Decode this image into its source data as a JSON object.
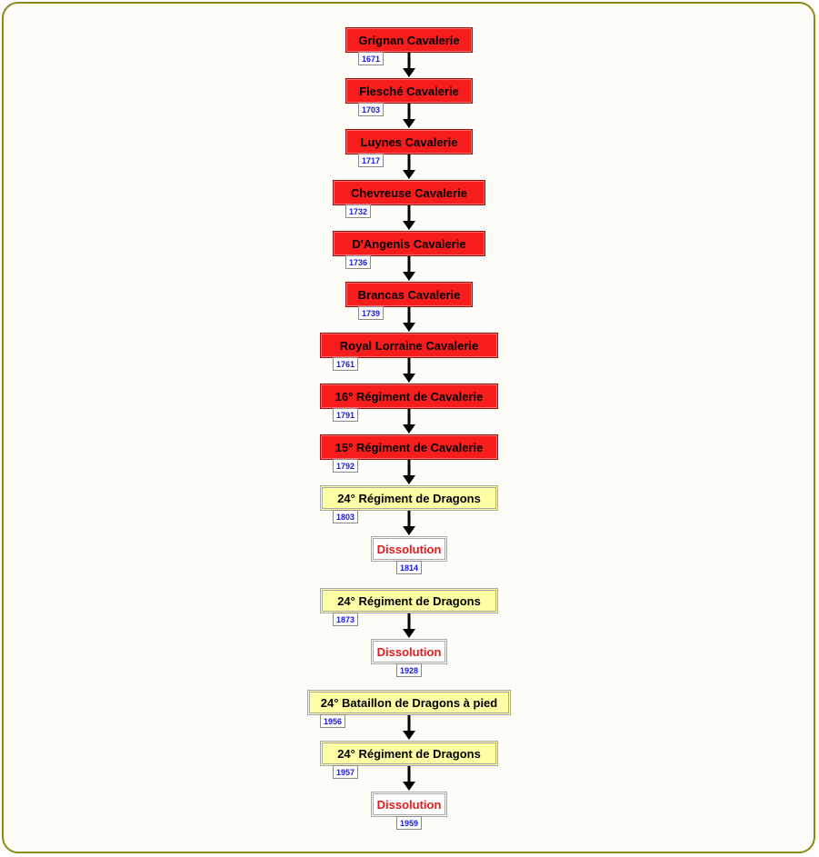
{
  "nodes": [
    {
      "label": "Grignan Cavalerie",
      "year": "1671",
      "style": "red"
    },
    {
      "label": "Flesché Cavalerie",
      "year": "1703",
      "style": "red"
    },
    {
      "label": "Luynes Cavalerie",
      "year": "1717",
      "style": "red"
    },
    {
      "label": "Chevreuse Cavalerie",
      "year": "1732",
      "style": "red"
    },
    {
      "label": "D'Angenis Cavalerie",
      "year": "1736",
      "style": "red"
    },
    {
      "label": "Brancas Cavalerie",
      "year": "1739",
      "style": "red"
    },
    {
      "label": "Royal Lorraine Cavalerie",
      "year": "1761",
      "style": "red"
    },
    {
      "label": "16° Régiment de Cavalerie",
      "year": "1791",
      "style": "red"
    },
    {
      "label": "15° Régiment de Cavalerie",
      "year": "1792",
      "style": "red"
    },
    {
      "label": "24° Régiment de Dragons",
      "year": "1803",
      "style": "yellow"
    },
    {
      "label": "Dissolution",
      "year": "1814",
      "style": "end"
    },
    {
      "label": "24° Régiment de Dragons",
      "year": "1873",
      "style": "yellow"
    },
    {
      "label": "Dissolution",
      "year": "1928",
      "style": "end"
    },
    {
      "label": "24° Bataillon de Dragons à pied",
      "year": "1956",
      "style": "yellow"
    },
    {
      "label": "24° Régiment de Dragons",
      "year": "1957",
      "style": "yellow"
    },
    {
      "label": "Dissolution",
      "year": "1959",
      "style": "end"
    }
  ],
  "edges": [
    [
      0,
      1
    ],
    [
      1,
      2
    ],
    [
      2,
      3
    ],
    [
      3,
      4
    ],
    [
      4,
      5
    ],
    [
      5,
      6
    ],
    [
      6,
      7
    ],
    [
      7,
      8
    ],
    [
      8,
      9
    ],
    [
      9,
      10
    ],
    [
      11,
      12
    ],
    [
      13,
      14
    ],
    [
      14,
      15
    ]
  ],
  "colors": {
    "frame_border": "#8a8a14",
    "red_box": "#f81d1d",
    "yellow_box": "#ffffa6",
    "dissolution_text": "#e51a1a",
    "year_text": "#1a1ad6",
    "arrow": "#000000"
  }
}
